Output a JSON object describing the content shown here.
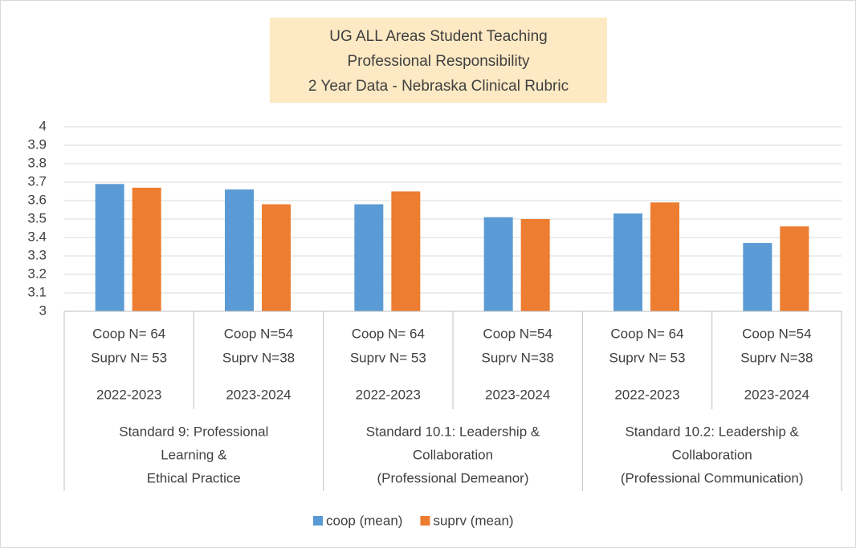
{
  "chart_data": {
    "type": "bar",
    "title": [
      "UG ALL Areas  Student Teaching",
      "Professional Responsibility",
      "2 Year Data - Nebraska Clinical Rubric"
    ],
    "categories": [
      {
        "lines": [
          "Coop N= 64",
          "Suprv N= 53"
        ],
        "year": "2022-2023"
      },
      {
        "lines": [
          "Coop N=54",
          "Suprv N=38"
        ],
        "year": "2023-2024"
      },
      {
        "lines": [
          "Coop N= 64",
          "Suprv N= 53"
        ],
        "year": "2022-2023"
      },
      {
        "lines": [
          "Coop N=54",
          "Suprv N=38"
        ],
        "year": "2023-2024"
      },
      {
        "lines": [
          "Coop N= 64",
          "Suprv N= 53"
        ],
        "year": "2022-2023"
      },
      {
        "lines": [
          "Coop N=54",
          "Suprv N=38"
        ],
        "year": "2023-2024"
      }
    ],
    "groups": [
      {
        "lines": [
          "Standard 9: Professional",
          "Learning &",
          "Ethical Practice"
        ]
      },
      {
        "lines": [
          "Standard 10.1: Leadership &",
          "Collaboration",
          "(Professional Demeanor)"
        ]
      },
      {
        "lines": [
          "Standard 10.2: Leadership &",
          "Collaboration",
          "(Professional Communication)"
        ]
      }
    ],
    "series": [
      {
        "name": "coop (mean)",
        "color": "#5b9bd5",
        "values": [
          3.69,
          3.66,
          3.58,
          3.51,
          3.53,
          3.37
        ]
      },
      {
        "name": "suprv (mean)",
        "color": "#ed7d31",
        "values": [
          3.67,
          3.58,
          3.65,
          3.5,
          3.59,
          3.46
        ]
      }
    ],
    "ylim": [
      3,
      4
    ],
    "yticks": [
      3,
      3.1,
      3.2,
      3.3,
      3.4,
      3.5,
      3.6,
      3.7,
      3.8,
      3.9,
      4
    ],
    "grid": true,
    "legend": "bottom"
  }
}
